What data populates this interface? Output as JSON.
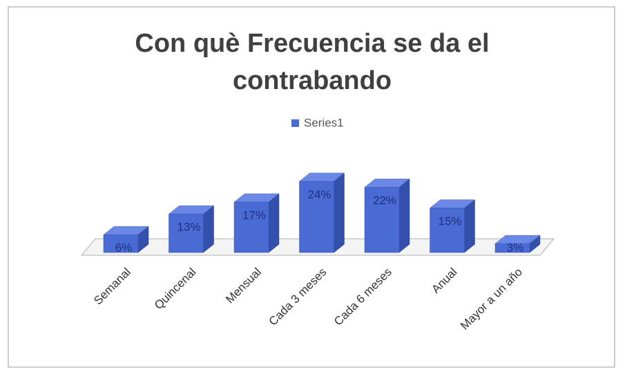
{
  "chart_data": {
    "type": "bar3d",
    "title": "Con què Frecuencia se da el contrabando",
    "categories": [
      "Semanal",
      "Quincenal",
      "Mensual",
      "Cada 3 meses",
      "Cada 6 meses",
      "Anual",
      "Mayor a un año"
    ],
    "series": [
      {
        "name": "Series1",
        "color": "#4a6bd3",
        "values": [
          6,
          13,
          17,
          24,
          22,
          15,
          3
        ],
        "value_labels": [
          "6%",
          "13%",
          "17%",
          "24%",
          "22%",
          "15%",
          "3%"
        ]
      }
    ],
    "legend": "top"
  }
}
